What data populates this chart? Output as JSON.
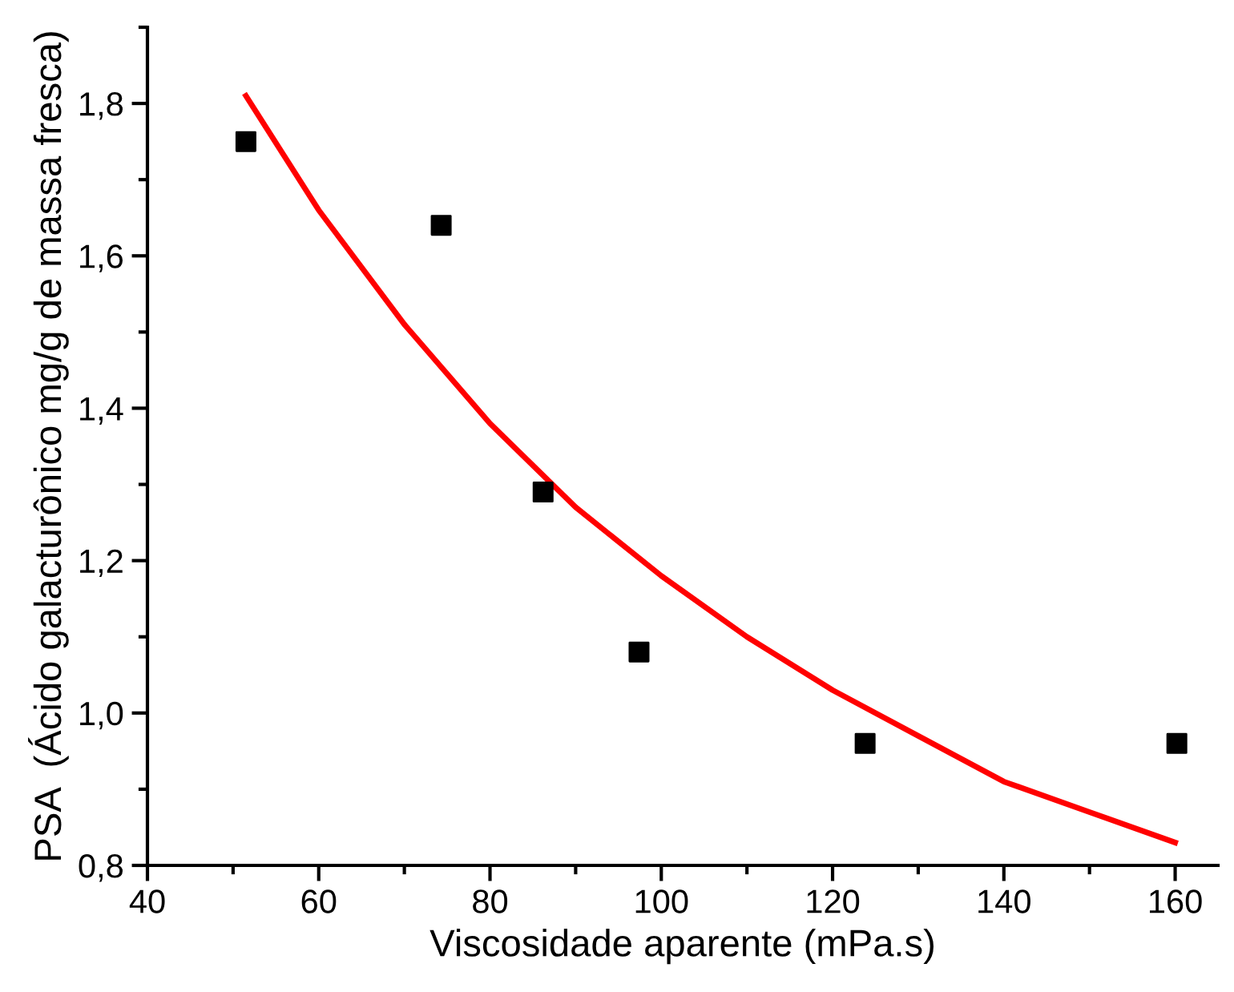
{
  "chart_data": {
    "type": "scatter",
    "xlabel": "Viscosidade aparente (mPa.s)",
    "ylabel": "PSA  (Ácido galacturônico mg/g de massa fresca)",
    "series": [
      {
        "color": "#000000",
        "marker": "square",
        "x": [
          51.5,
          74.3,
          86.2,
          97.4,
          123.8,
          160.2
        ],
        "values": [
          1.75,
          1.64,
          1.29,
          1.08,
          0.96,
          0.96
        ]
      },
      {
        "type": "line",
        "color": "#ff0000",
        "marker": "none",
        "line_style": "solid",
        "x": [
          51.5,
          60,
          70,
          80,
          90,
          100,
          110,
          120,
          130,
          140,
          150,
          160
        ],
        "values": [
          1.81,
          1.66,
          1.51,
          1.38,
          1.27,
          1.18,
          1.1,
          1.03,
          0.97,
          0.91,
          0.87,
          0.83
        ]
      }
    ],
    "xlim": [
      40,
      165
    ],
    "ylim": [
      0.8,
      1.9
    ],
    "xticks": [
      40,
      60,
      80,
      100,
      120,
      140,
      160
    ],
    "yticks": [
      {
        "value": 0.8,
        "label": "0,8"
      },
      {
        "value": 1.0,
        "label": "1,0"
      },
      {
        "value": 1.2,
        "label": "1,2"
      },
      {
        "value": 1.4,
        "label": "1,4"
      },
      {
        "value": 1.6,
        "label": "1,6"
      },
      {
        "value": 1.8,
        "label": "1,8"
      }
    ],
    "grid": false,
    "legend": false
  }
}
